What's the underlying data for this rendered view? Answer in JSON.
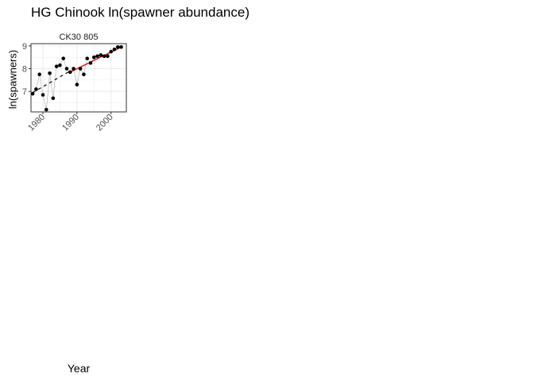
{
  "title": "HG Chinook ln(spawner abundance)",
  "chart_data": {
    "type": "scatter",
    "title": "HG Chinook ln(spawner abundance)",
    "xlabel": "Year",
    "ylabel": "ln(spawners)",
    "panels": [
      {
        "strip_label": "CK30 805",
        "xlim": [
          1976.5,
          2004.5
        ],
        "ylim": [
          6.1,
          9.1
        ],
        "x_ticks": [
          1980,
          1990,
          2000
        ],
        "x_tick_labels": [
          "1980",
          "1990",
          "2000"
        ],
        "y_ticks": [
          7,
          8,
          9
        ],
        "y_tick_labels": [
          "7",
          "8",
          "9"
        ],
        "grid": true,
        "series": [
          {
            "name": "observed",
            "style": "points-connected",
            "x": [
              1977,
              1978,
              1979,
              1980,
              1981,
              1982,
              1983,
              1984,
              1985,
              1986,
              1987,
              1988,
              1989,
              1990,
              1991,
              1992,
              1993,
              1994,
              1995,
              1996,
              1997,
              1998,
              1999,
              2000,
              2001,
              2002,
              2003
            ],
            "y": [
              6.9,
              7.1,
              7.75,
              6.85,
              6.2,
              7.8,
              6.7,
              8.1,
              8.15,
              8.45,
              8.0,
              7.85,
              8.0,
              7.3,
              8.0,
              7.75,
              8.45,
              8.25,
              8.5,
              8.55,
              8.6,
              8.55,
              8.55,
              8.75,
              8.85,
              8.95,
              8.95
            ]
          },
          {
            "name": "trend-dashed",
            "style": "dashed-line",
            "x": [
              1977,
              1988
            ],
            "y": [
              6.95,
              7.9
            ]
          },
          {
            "name": "trend-recent",
            "style": "red-line",
            "x": [
              1988,
              2003
            ],
            "y": [
              7.85,
              8.95
            ]
          }
        ]
      }
    ]
  },
  "colors": {
    "points": "#000000",
    "connector": "#aaaaaa",
    "dashed_trend": "#000000",
    "recent_trend": "#e41a1c",
    "grid": "#ebebeb",
    "panel_border": "#333333"
  }
}
